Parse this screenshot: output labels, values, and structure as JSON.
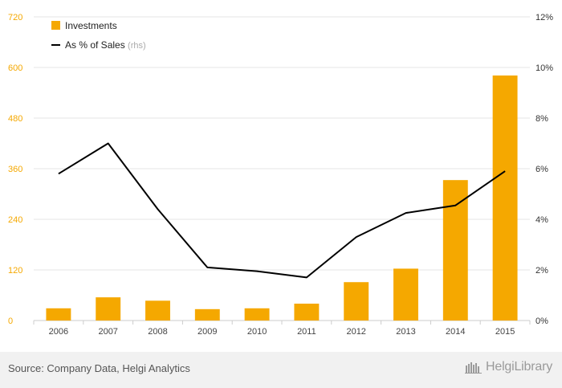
{
  "chart_data": {
    "type": "bar",
    "categories": [
      "2006",
      "2007",
      "2008",
      "2009",
      "2010",
      "2011",
      "2012",
      "2013",
      "2014",
      "2015"
    ],
    "series": [
      {
        "name": "Investments",
        "kind": "bar",
        "axis": "left",
        "color": "#f5a800",
        "values": [
          29,
          55,
          47,
          27,
          29,
          40,
          91,
          123,
          333,
          581
        ]
      },
      {
        "name": "As % of Sales",
        "name_suffix": "(rhs)",
        "kind": "line",
        "axis": "right",
        "color": "#000000",
        "values": [
          5.8,
          7.0,
          4.4,
          2.1,
          1.95,
          1.7,
          3.3,
          4.25,
          4.55,
          5.9
        ]
      }
    ],
    "left_axis": {
      "min": 0,
      "max": 720,
      "ticks": [
        "0",
        "120",
        "240",
        "360",
        "480",
        "600",
        "720"
      ],
      "color": "#f5a800"
    },
    "right_axis": {
      "min": 0,
      "max": 12,
      "ticks": [
        "0%",
        "2%",
        "4%",
        "6%",
        "8%",
        "10%",
        "12%"
      ]
    },
    "grid": true,
    "legend_position": "top-left"
  },
  "footer": {
    "source": "Source: Company Data, Helgi Analytics",
    "logo_word1": "Helgi",
    "logo_word2": "Library"
  }
}
